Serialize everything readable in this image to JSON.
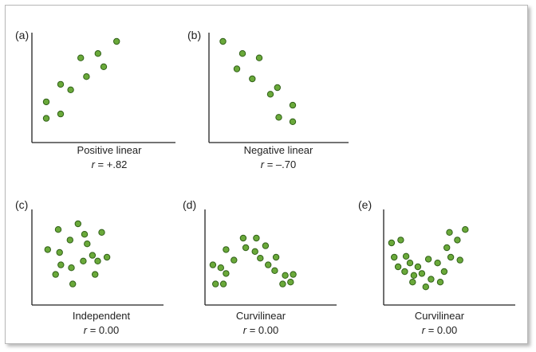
{
  "colors": {
    "point_fill": "#6aa93a",
    "point_stroke": "#2f5f17",
    "axis": "#222222"
  },
  "chart_data": [
    {
      "type": "scatter",
      "panel_label": "(a)",
      "caption": "Positive linear",
      "r_symbol": "r",
      "r_value": "= +.82",
      "xlim": [
        0,
        10
      ],
      "ylim": [
        0,
        10
      ],
      "points": [
        [
          1.0,
          2.2
        ],
        [
          1.0,
          3.7
        ],
        [
          2.0,
          2.6
        ],
        [
          2.0,
          5.3
        ],
        [
          2.7,
          4.8
        ],
        [
          3.4,
          7.7
        ],
        [
          3.8,
          6.0
        ],
        [
          4.6,
          8.1
        ],
        [
          5.0,
          6.9
        ],
        [
          5.9,
          9.2
        ]
      ]
    },
    {
      "type": "scatter",
      "panel_label": "(b)",
      "caption": "Negative linear",
      "r_symbol": "r",
      "r_value": "= –.70",
      "xlim": [
        0,
        10
      ],
      "ylim": [
        0,
        10
      ],
      "points": [
        [
          1.0,
          9.2
        ],
        [
          2.0,
          6.7
        ],
        [
          2.4,
          8.1
        ],
        [
          3.1,
          5.8
        ],
        [
          3.6,
          7.7
        ],
        [
          4.4,
          4.4
        ],
        [
          4.9,
          5.0
        ],
        [
          5.0,
          2.3
        ],
        [
          6.0,
          1.9
        ],
        [
          6.0,
          3.4
        ]
      ]
    },
    {
      "type": "scatter",
      "panel_label": "(c)",
      "caption": "Independent",
      "r_symbol": "r",
      "r_value": "= 0.00",
      "xlim": [
        0,
        10
      ],
      "ylim": [
        0,
        10
      ],
      "points": [
        [
          1.2,
          5.8
        ],
        [
          1.8,
          3.2
        ],
        [
          2.0,
          7.9
        ],
        [
          2.1,
          5.5
        ],
        [
          2.2,
          4.2
        ],
        [
          2.9,
          6.8
        ],
        [
          3.0,
          3.9
        ],
        [
          3.1,
          2.2
        ],
        [
          3.5,
          8.5
        ],
        [
          3.9,
          4.6
        ],
        [
          4.0,
          7.4
        ],
        [
          4.2,
          6.4
        ],
        [
          4.6,
          5.2
        ],
        [
          4.8,
          3.2
        ],
        [
          5.0,
          4.6
        ],
        [
          5.3,
          7.6
        ],
        [
          5.7,
          5.0
        ]
      ]
    },
    {
      "type": "scatter",
      "panel_label": "(d)",
      "caption": "Curvilinear",
      "r_symbol": "r",
      "r_value": "= 0.00",
      "xlim": [
        0,
        10
      ],
      "ylim": [
        0,
        10
      ],
      "points": [
        [
          0.6,
          4.2
        ],
        [
          0.8,
          2.2
        ],
        [
          1.2,
          3.9
        ],
        [
          1.4,
          2.2
        ],
        [
          1.6,
          5.8
        ],
        [
          1.6,
          3.3
        ],
        [
          2.2,
          4.7
        ],
        [
          2.9,
          7.0
        ],
        [
          3.1,
          6.0
        ],
        [
          3.8,
          5.6
        ],
        [
          3.9,
          7.0
        ],
        [
          4.2,
          4.9
        ],
        [
          4.6,
          6.2
        ],
        [
          4.8,
          4.2
        ],
        [
          5.3,
          3.6
        ],
        [
          5.4,
          5.0
        ],
        [
          5.9,
          2.2
        ],
        [
          6.1,
          3.1
        ],
        [
          6.5,
          2.4
        ],
        [
          6.7,
          3.2
        ]
      ]
    },
    {
      "type": "scatter",
      "panel_label": "(e)",
      "caption": "Curvilinear",
      "r_symbol": "r",
      "r_value": "= 0.00",
      "xlim": [
        0,
        10
      ],
      "ylim": [
        0,
        10
      ],
      "points": [
        [
          0.6,
          6.5
        ],
        [
          0.8,
          5.0
        ],
        [
          1.1,
          4.0
        ],
        [
          1.3,
          6.8
        ],
        [
          1.6,
          3.5
        ],
        [
          1.7,
          5.1
        ],
        [
          2.0,
          4.4
        ],
        [
          2.2,
          2.4
        ],
        [
          2.3,
          3.1
        ],
        [
          2.6,
          4.0
        ],
        [
          2.9,
          3.3
        ],
        [
          3.2,
          1.9
        ],
        [
          3.4,
          4.8
        ],
        [
          3.6,
          2.7
        ],
        [
          4.1,
          4.4
        ],
        [
          4.3,
          2.4
        ],
        [
          4.6,
          3.5
        ],
        [
          4.8,
          6.0
        ],
        [
          5.0,
          7.6
        ],
        [
          5.1,
          5.0
        ],
        [
          5.6,
          6.8
        ],
        [
          5.8,
          4.7
        ],
        [
          6.2,
          7.9
        ]
      ]
    }
  ]
}
